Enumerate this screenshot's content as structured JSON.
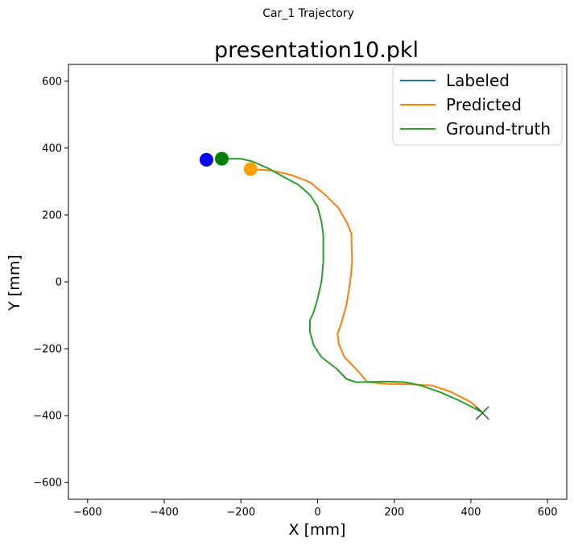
{
  "figure": {
    "suptitle": "Car_1 Trajectory"
  },
  "chart_data": {
    "type": "line",
    "title": "presentation10.pkl",
    "xlabel": "X [mm]",
    "ylabel": "Y [mm]",
    "xlim": [
      -650,
      650
    ],
    "ylim": [
      -650,
      650
    ],
    "xticks": [
      -600,
      -400,
      -200,
      0,
      200,
      400,
      600
    ],
    "yticks": [
      -600,
      -400,
      -200,
      0,
      200,
      400,
      600
    ],
    "xtick_labels": [
      "−600",
      "−400",
      "−200",
      "0",
      "200",
      "400",
      "600"
    ],
    "ytick_labels": [
      "−600",
      "−400",
      "−200",
      "0",
      "200",
      "400",
      "600"
    ],
    "grid": false,
    "legend_position": "top-right",
    "series": [
      {
        "name": "Labeled",
        "color": "#1f77b4",
        "x": [],
        "y": []
      },
      {
        "name": "Predicted",
        "color": "#ff7f0e",
        "x": [
          -175,
          -120,
          -70,
          -20,
          20,
          55,
          75,
          88,
          90,
          85,
          75,
          60,
          52,
          55,
          70,
          100,
          130,
          180,
          240,
          300,
          350,
          400,
          430
        ],
        "y": [
          337,
          333,
          320,
          298,
          260,
          220,
          180,
          145,
          60,
          0,
          -70,
          -130,
          -155,
          -185,
          -225,
          -260,
          -300,
          -305,
          -306,
          -310,
          -330,
          -360,
          -390
        ]
      },
      {
        "name": "Ground-truth",
        "color": "#2ca02c",
        "x": [
          -250,
          -200,
          -170,
          -130,
          -90,
          -50,
          -20,
          0,
          10,
          15,
          15,
          10,
          0,
          -10,
          -20,
          -20,
          -10,
          10,
          50,
          75,
          100,
          180,
          230,
          270,
          320,
          370,
          430
        ],
        "y": [
          368,
          368,
          360,
          340,
          315,
          290,
          260,
          225,
          180,
          140,
          60,
          0,
          -50,
          -90,
          -115,
          -150,
          -190,
          -225,
          -260,
          -290,
          -300,
          -298,
          -300,
          -310,
          -330,
          -355,
          -390
        ]
      }
    ],
    "markers": [
      {
        "kind": "start-dot",
        "color": "#0000ff",
        "x": -290,
        "y": 365
      },
      {
        "kind": "start-dot",
        "color": "#ff9f00",
        "x": -175,
        "y": 337
      },
      {
        "kind": "start-dot",
        "color": "#008000",
        "x": -250,
        "y": 368
      },
      {
        "kind": "end-cross",
        "color": "#2f6f2f",
        "x": 430,
        "y": -392
      }
    ]
  }
}
